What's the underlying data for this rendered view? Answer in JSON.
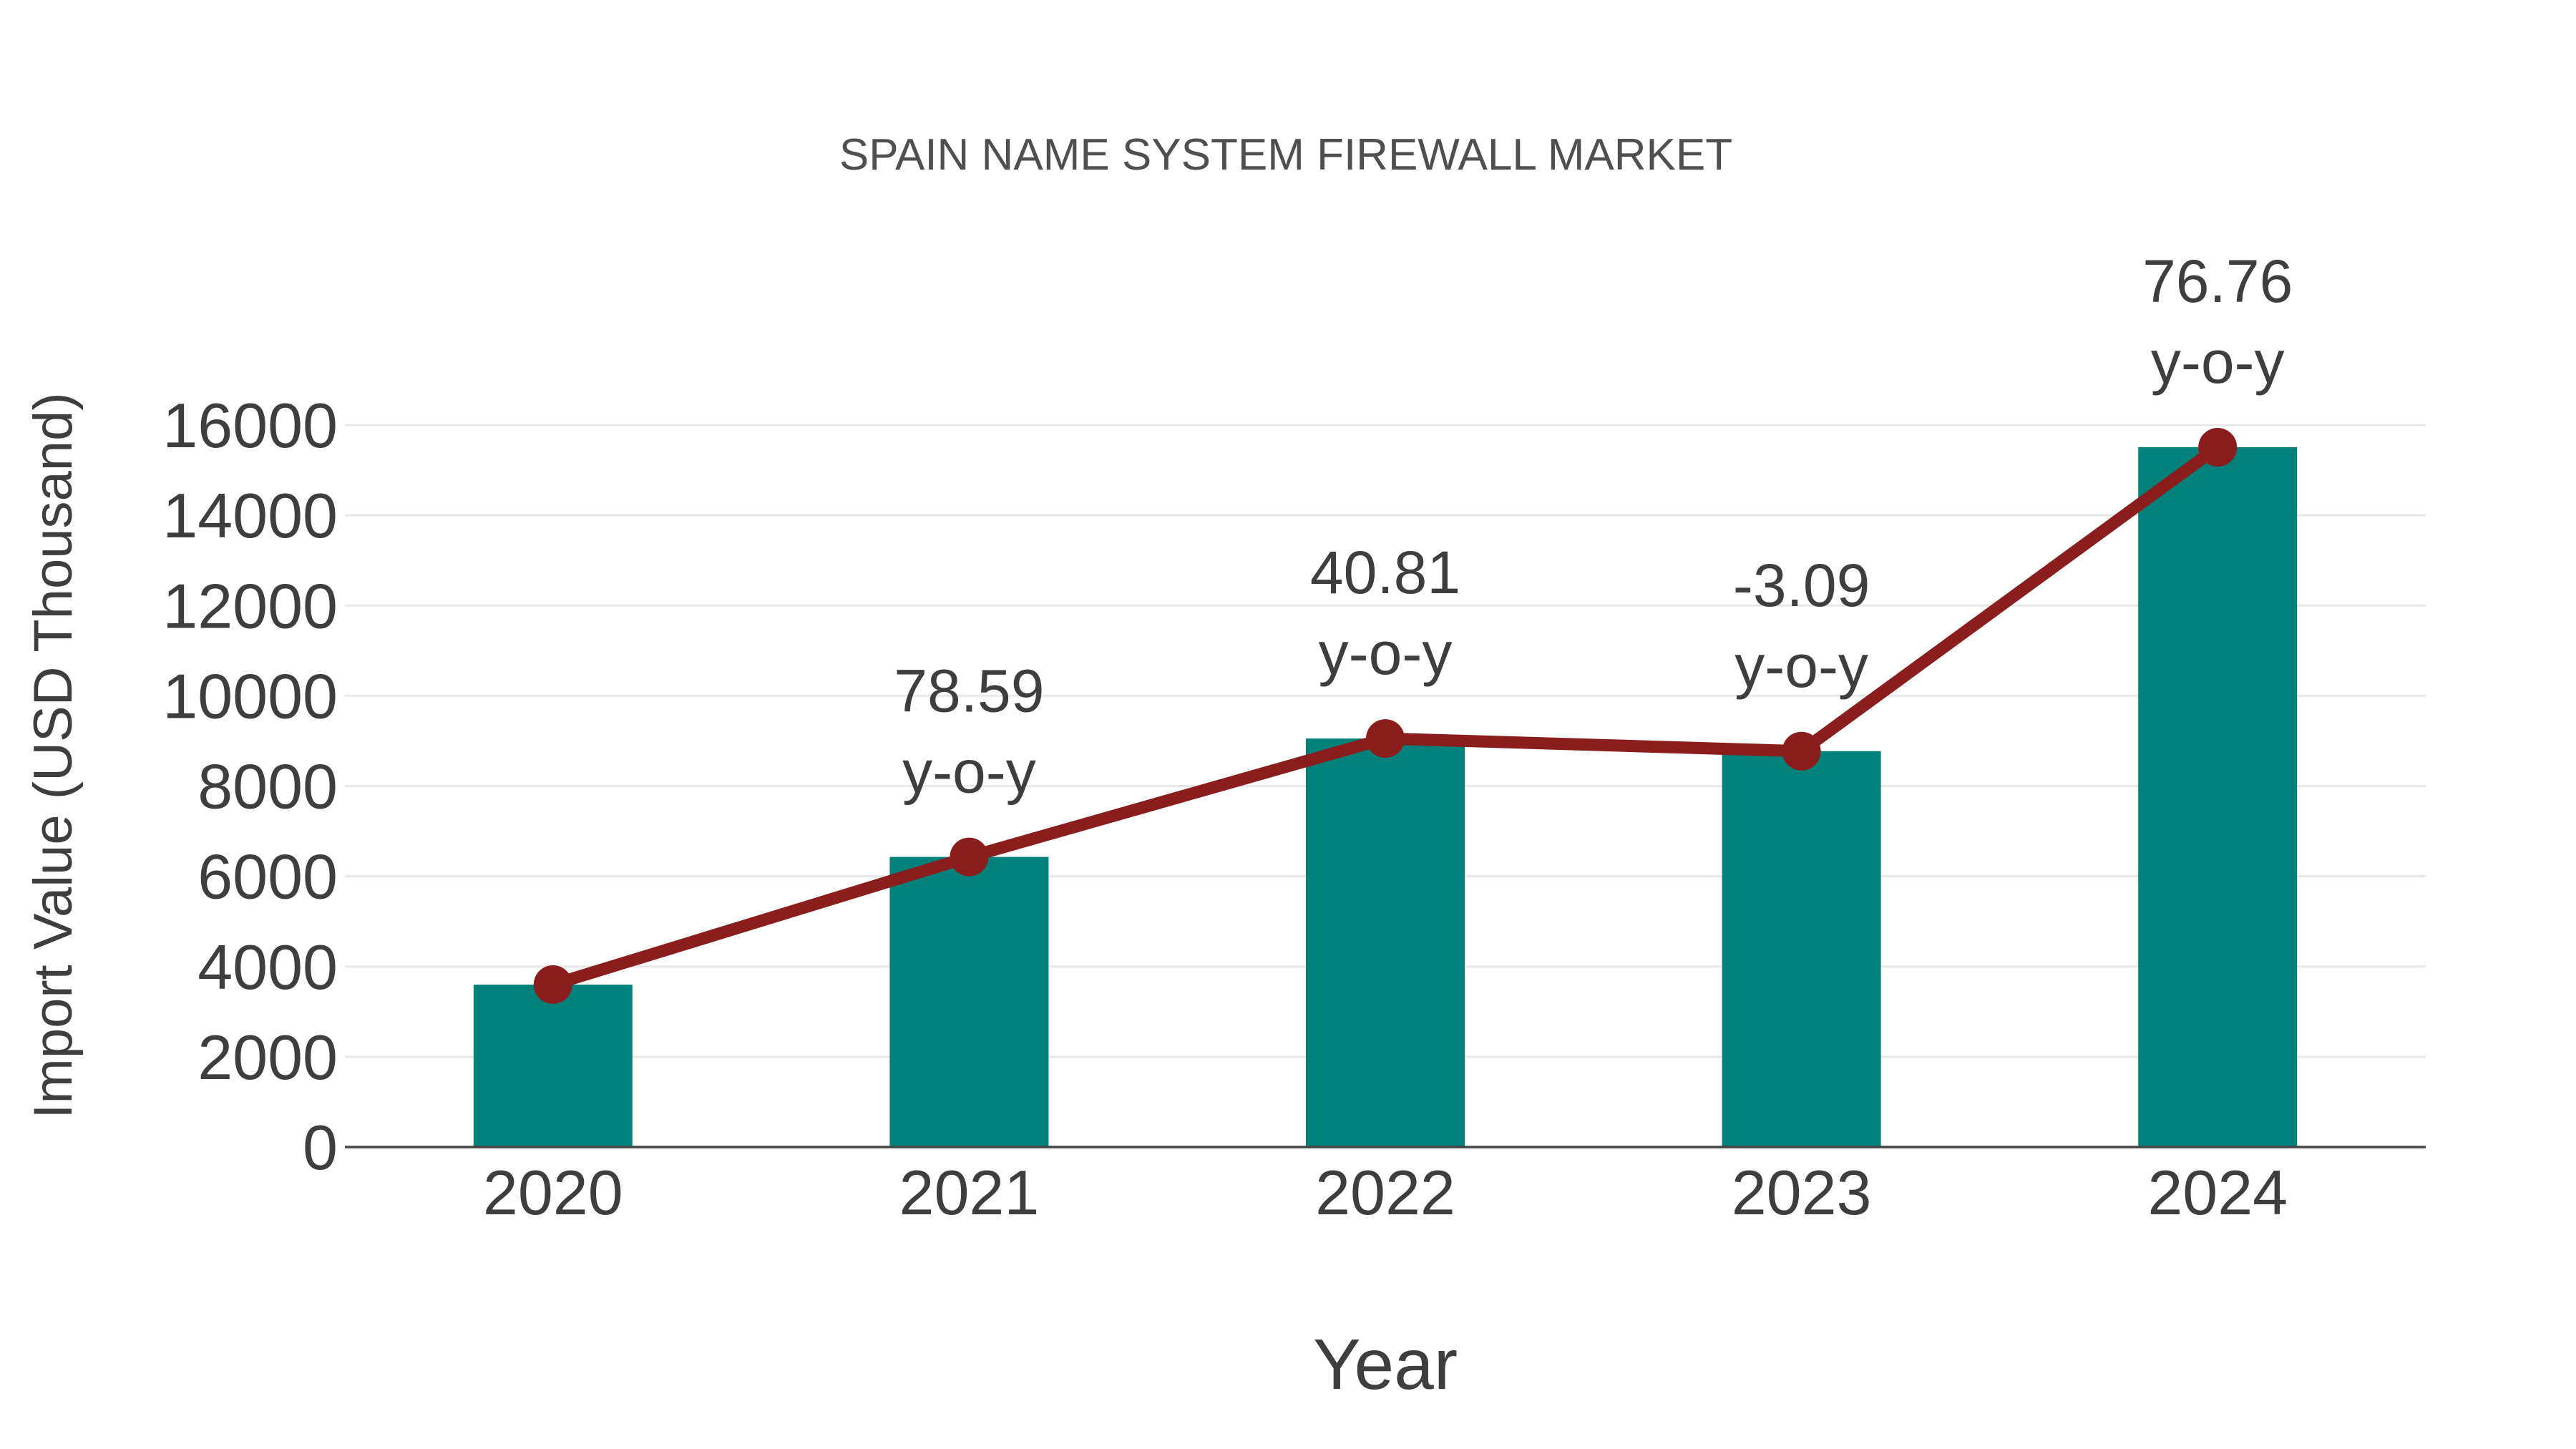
{
  "page": {
    "background": "#FFFFFF"
  },
  "chart_data": {
    "type": "bar",
    "overlay": "line",
    "title": "SPAIN NAME SYSTEM FIREWALL MARKET",
    "xlabel": "Year",
    "ylabel": "Import Value (USD Thousand)",
    "categories": [
      "2020",
      "2021",
      "2022",
      "2023",
      "2024"
    ],
    "values": [
      3600,
      6429,
      9053,
      8773,
      15508
    ],
    "yoy_labels": [
      "",
      "78.59",
      "40.81",
      "-3.09",
      "76.76"
    ],
    "yoy_suffix": "y-o-y",
    "ylim": [
      0,
      16000
    ],
    "ytick_step": 2000,
    "ytick_labels": [
      "0",
      "2000",
      "4000",
      "6000",
      "8000",
      "10000",
      "12000",
      "14000",
      "16000"
    ],
    "grid": "horizontal",
    "legend": "none",
    "colors": {
      "bar": "#00817B",
      "line": "#8B1D1D",
      "grid": "#E8E8E8",
      "axis": "#454545",
      "text": "#3E3E3E",
      "title": "#4F4F4F"
    }
  }
}
